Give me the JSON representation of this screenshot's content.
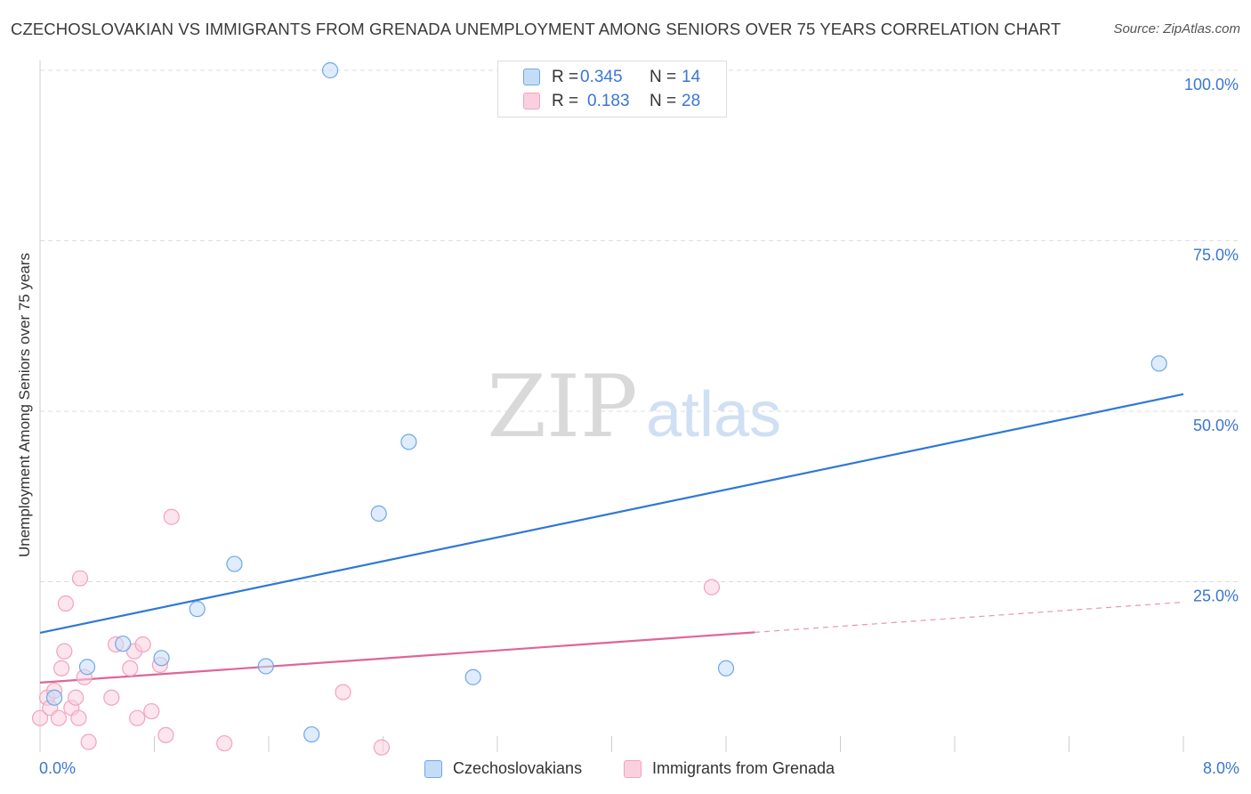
{
  "title": "CZECHOSLOVAKIAN VS IMMIGRANTS FROM GRENADA UNEMPLOYMENT AMONG SENIORS OVER 75 YEARS CORRELATION CHART",
  "source": "Source: ZipAtlas.com",
  "watermark": {
    "zip": "ZIP",
    "atlas": "atlas"
  },
  "legend_top": [
    {
      "r_label": "R =",
      "r_value": "0.345",
      "n_label": "N =",
      "n_value": "14"
    },
    {
      "r_label": "R =",
      "r_value": "0.183",
      "n_label": "N =",
      "n_value": "28"
    }
  ],
  "chart_data": {
    "type": "scatter",
    "title": "CZECHOSLOVAKIAN VS IMMIGRANTS FROM GRENADA UNEMPLOYMENT AMONG SENIORS OVER 75 YEARS CORRELATION CHART",
    "xlabel": "",
    "ylabel": "Unemployment Among Seniors over 75 years",
    "xlim": [
      0,
      8
    ],
    "ylim": [
      0,
      100
    ],
    "x_tick_labels": [
      "0.0%",
      "8.0%"
    ],
    "y_tick_labels": [
      "100.0%",
      "75.0%",
      "50.0%",
      "25.0%"
    ],
    "y_tick_values": [
      100,
      75,
      50,
      25
    ],
    "x_tick_marks": [
      0.8,
      1.6,
      2.4,
      3.2,
      4.0,
      4.8,
      5.6,
      6.4,
      7.2,
      8.0
    ],
    "grid": true,
    "legend_position": "top-center",
    "series": [
      {
        "name": "Czechoslovakians",
        "color": "#6fa8e8",
        "fill": "#c5dcf7",
        "line_color": "#2f78d6",
        "points": [
          [
            0.1,
            8.0
          ],
          [
            0.33,
            12.5
          ],
          [
            0.58,
            15.9
          ],
          [
            0.85,
            13.8
          ],
          [
            1.1,
            21.0
          ],
          [
            1.36,
            27.6
          ],
          [
            1.58,
            12.6
          ],
          [
            1.9,
            2.6
          ],
          [
            2.03,
            100.0
          ],
          [
            2.37,
            35.0
          ],
          [
            2.58,
            45.5
          ],
          [
            3.03,
            11.0
          ],
          [
            4.8,
            12.3
          ],
          [
            7.83,
            57.0
          ]
        ],
        "trend": {
          "x": [
            0,
            8
          ],
          "y": [
            17.5,
            52.5
          ],
          "dashed_from": null
        }
      },
      {
        "name": "Immigrants from Grenada",
        "color": "#f2a3bd",
        "fill": "#fad0de",
        "line_color": "#e0649a",
        "points": [
          [
            0.0,
            5.0
          ],
          [
            0.05,
            8.0
          ],
          [
            0.07,
            6.5
          ],
          [
            0.1,
            9.0
          ],
          [
            0.13,
            5.0
          ],
          [
            0.15,
            12.3
          ],
          [
            0.17,
            14.8
          ],
          [
            0.18,
            21.8
          ],
          [
            0.22,
            6.5
          ],
          [
            0.25,
            8.0
          ],
          [
            0.27,
            5.0
          ],
          [
            0.28,
            25.5
          ],
          [
            0.31,
            11.0
          ],
          [
            0.34,
            1.5
          ],
          [
            0.5,
            8.0
          ],
          [
            0.53,
            15.8
          ],
          [
            0.63,
            12.3
          ],
          [
            0.66,
            14.8
          ],
          [
            0.68,
            5.0
          ],
          [
            0.72,
            15.8
          ],
          [
            0.78,
            6.0
          ],
          [
            0.84,
            12.8
          ],
          [
            0.88,
            2.5
          ],
          [
            0.92,
            34.5
          ],
          [
            1.29,
            1.3
          ],
          [
            2.12,
            8.8
          ],
          [
            2.39,
            0.7
          ],
          [
            4.7,
            24.2
          ]
        ],
        "trend": {
          "x": [
            0,
            8
          ],
          "y": [
            10.2,
            22.0
          ],
          "dashed_from": 5.0
        }
      }
    ]
  },
  "legend_bottom": [
    {
      "label": "Czechoslovakians"
    },
    {
      "label": "Immigrants from Grenada"
    }
  ]
}
